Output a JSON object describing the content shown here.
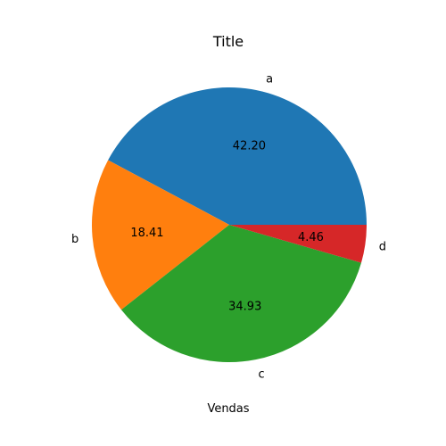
{
  "chart_data": {
    "type": "pie",
    "title": "Title",
    "xlabel": "Vendas",
    "ylabel": "",
    "start_angle_deg": 0,
    "direction": "counterclockwise",
    "slices": [
      {
        "label": "a",
        "value": 42.2,
        "pct_text": "42.20",
        "color": "#1f77b4"
      },
      {
        "label": "b",
        "value": 18.41,
        "pct_text": "18.41",
        "color": "#ff7f0e"
      },
      {
        "label": "c",
        "value": 34.93,
        "pct_text": "34.93",
        "color": "#2ca02c"
      },
      {
        "label": "d",
        "value": 4.46,
        "pct_text": "4.46",
        "color": "#d62728"
      }
    ]
  }
}
